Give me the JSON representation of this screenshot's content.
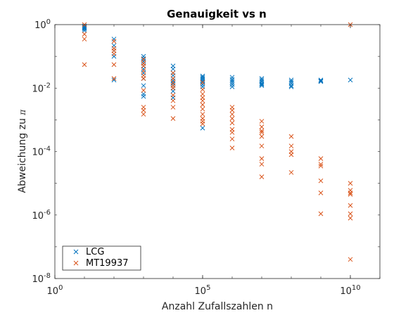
{
  "colors": {
    "lcg": "#0072bd",
    "mt": "#d95319",
    "axis": "#262626",
    "background": "#ffffff"
  },
  "chart_data": {
    "type": "scatter",
    "title": "Genauigkeit vs n",
    "xlabel": "Anzahl Zufallszahlen n",
    "ylabel_main": "Abweichung zu ",
    "ylabel_symbol": "π",
    "x_scale": "log",
    "y_scale": "log",
    "xlim": [
      1,
      100000000000.0
    ],
    "ylim": [
      1e-08,
      1
    ],
    "x_ticks": [
      {
        "value": 1,
        "base": "10",
        "exp": "0"
      },
      {
        "value": 100000,
        "base": "10",
        "exp": "5"
      },
      {
        "value": 10000000000,
        "base": "10",
        "exp": "10"
      }
    ],
    "y_ticks": [
      {
        "value": 1e-08,
        "base": "10",
        "exp": "-8"
      },
      {
        "value": 1e-06,
        "base": "10",
        "exp": "-6"
      },
      {
        "value": 0.0001,
        "base": "10",
        "exp": "-4"
      },
      {
        "value": 0.01,
        "base": "10",
        "exp": "-2"
      },
      {
        "value": 1,
        "base": "10",
        "exp": "0"
      }
    ],
    "marker": "x",
    "legend_position": "bottom-left",
    "series": [
      {
        "name": "LCG",
        "color": "#0072bd",
        "points": [
          [
            10,
            0.78
          ],
          [
            10,
            0.72
          ],
          [
            10,
            0.65
          ],
          [
            10,
            0.9
          ],
          [
            10,
            0.83
          ],
          [
            100,
            0.35
          ],
          [
            100,
            0.22
          ],
          [
            100,
            0.15
          ],
          [
            100,
            0.1
          ],
          [
            100,
            0.018
          ],
          [
            1000,
            0.1
          ],
          [
            1000,
            0.085
          ],
          [
            1000,
            0.07
          ],
          [
            1000,
            0.06
          ],
          [
            1000,
            0.05
          ],
          [
            1000,
            0.04
          ],
          [
            1000,
            0.03
          ],
          [
            1000,
            0.02
          ],
          [
            1000,
            0.012
          ],
          [
            1000,
            0.0065
          ],
          [
            1000,
            0.0055
          ],
          [
            10000,
            0.05
          ],
          [
            10000,
            0.04
          ],
          [
            10000,
            0.03
          ],
          [
            10000,
            0.025
          ],
          [
            10000,
            0.02
          ],
          [
            10000,
            0.017
          ],
          [
            10000,
            0.014
          ],
          [
            10000,
            0.012
          ],
          [
            10000,
            0.01
          ],
          [
            10000,
            0.008
          ],
          [
            10000,
            0.005
          ],
          [
            100000,
            0.024
          ],
          [
            100000,
            0.022
          ],
          [
            100000,
            0.02
          ],
          [
            100000,
            0.018
          ],
          [
            100000,
            0.016
          ],
          [
            100000,
            0.015
          ],
          [
            100000,
            0.013
          ],
          [
            100000,
            0.011
          ],
          [
            100000,
            0.00055
          ],
          [
            1000000,
            0.022
          ],
          [
            1000000,
            0.019
          ],
          [
            1000000,
            0.017
          ],
          [
            1000000,
            0.015
          ],
          [
            1000000,
            0.013
          ],
          [
            1000000,
            0.011
          ],
          [
            10000000,
            0.02
          ],
          [
            10000000,
            0.018
          ],
          [
            10000000,
            0.016
          ],
          [
            10000000,
            0.014
          ],
          [
            10000000,
            0.013
          ],
          [
            10000000,
            0.012
          ],
          [
            100000000,
            0.018
          ],
          [
            100000000,
            0.016
          ],
          [
            100000000,
            0.014
          ],
          [
            100000000,
            0.012
          ],
          [
            100000000,
            0.011
          ],
          [
            1000000000,
            0.018
          ],
          [
            1000000000,
            0.017
          ],
          [
            1000000000,
            0.016
          ],
          [
            10000000000,
            0.018
          ]
        ]
      },
      {
        "name": "MT19937",
        "color": "#d95319",
        "points": [
          [
            10,
            1.0
          ],
          [
            10,
            0.5
          ],
          [
            10,
            0.35
          ],
          [
            10,
            0.055
          ],
          [
            100,
            0.3
          ],
          [
            100,
            0.18
          ],
          [
            100,
            0.15
          ],
          [
            100,
            0.12
          ],
          [
            100,
            0.055
          ],
          [
            100,
            0.02
          ],
          [
            1000,
            0.08
          ],
          [
            1000,
            0.06
          ],
          [
            1000,
            0.05
          ],
          [
            1000,
            0.035
          ],
          [
            1000,
            0.025
          ],
          [
            1000,
            0.02
          ],
          [
            1000,
            0.0085
          ],
          [
            1000,
            0.0025
          ],
          [
            1000,
            0.002
          ],
          [
            1000,
            0.0015
          ],
          [
            10000,
            0.03
          ],
          [
            10000,
            0.02
          ],
          [
            10000,
            0.015
          ],
          [
            10000,
            0.012
          ],
          [
            10000,
            0.01
          ],
          [
            10000,
            0.006
          ],
          [
            10000,
            0.004
          ],
          [
            10000,
            0.0025
          ],
          [
            10000,
            0.0011
          ],
          [
            100000,
            0.015
          ],
          [
            100000,
            0.009
          ],
          [
            100000,
            0.0065
          ],
          [
            100000,
            0.005
          ],
          [
            100000,
            0.004
          ],
          [
            100000,
            0.003
          ],
          [
            100000,
            0.0022
          ],
          [
            100000,
            0.0015
          ],
          [
            100000,
            0.0011
          ],
          [
            100000,
            0.0009
          ],
          [
            100000,
            0.00075
          ],
          [
            1000000,
            0.0025
          ],
          [
            1000000,
            0.002
          ],
          [
            1000000,
            0.0015
          ],
          [
            1000000,
            0.0011
          ],
          [
            1000000,
            0.0008
          ],
          [
            1000000,
            0.0005
          ],
          [
            1000000,
            0.0004
          ],
          [
            1000000,
            0.00025
          ],
          [
            1000000,
            0.00013
          ],
          [
            10000000,
            0.0009
          ],
          [
            10000000,
            0.0006
          ],
          [
            10000000,
            0.00045
          ],
          [
            10000000,
            0.0004
          ],
          [
            10000000,
            0.0003
          ],
          [
            10000000,
            0.00015
          ],
          [
            10000000,
            6e-05
          ],
          [
            10000000,
            4e-05
          ],
          [
            10000000,
            1.6e-05
          ],
          [
            100000000,
            0.0003
          ],
          [
            100000000,
            0.00015
          ],
          [
            100000000,
            0.0001
          ],
          [
            100000000,
            8e-05
          ],
          [
            100000000,
            2.2e-05
          ],
          [
            1000000000,
            6e-05
          ],
          [
            1000000000,
            4e-05
          ],
          [
            1000000000,
            3.5e-05
          ],
          [
            1000000000,
            1.2e-05
          ],
          [
            1000000000,
            5e-06
          ],
          [
            1000000000,
            1.1e-06
          ],
          [
            10000000000,
            1.0
          ],
          [
            10000000000,
            1e-05
          ],
          [
            10000000000,
            6e-06
          ],
          [
            10000000000,
            5e-06
          ],
          [
            10000000000,
            4.5e-06
          ],
          [
            10000000000,
            2e-06
          ],
          [
            10000000000,
            1.1e-06
          ],
          [
            10000000000,
            8e-07
          ],
          [
            10000000000,
            4e-08
          ]
        ]
      }
    ]
  }
}
